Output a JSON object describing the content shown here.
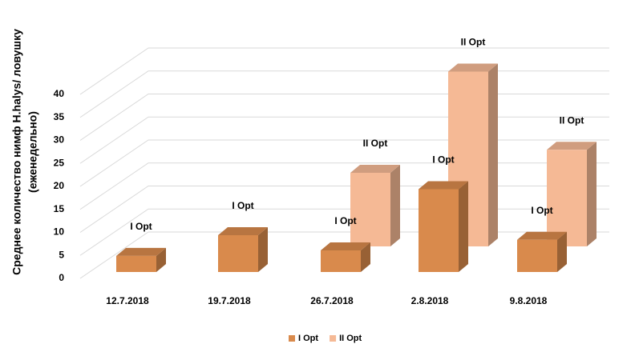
{
  "chart_data": {
    "type": "bar3d",
    "ylabel": [
      "Среднее количество нимф H.halys/ ловушку",
      "(еженедельно)"
    ],
    "categories": [
      "12.7.2018",
      "19.7.2018",
      "26.7.2018",
      "2.8.2018",
      "9.8.2018"
    ],
    "series": [
      {
        "name": "I Opt",
        "color": "#d98a4c",
        "values": [
          3.5,
          8,
          4.7,
          18,
          7
        ]
      },
      {
        "name": "II Opt",
        "color": "#f5b995",
        "values": [
          null,
          null,
          16,
          38,
          21
        ]
      }
    ],
    "ylim": [
      0,
      40
    ],
    "yticks": [
      0,
      5,
      10,
      15,
      20,
      25,
      30,
      35,
      40
    ],
    "grid": true,
    "legend": "bottom"
  }
}
